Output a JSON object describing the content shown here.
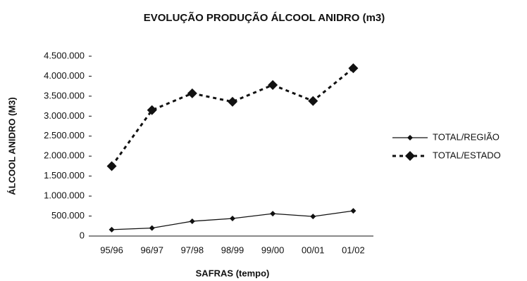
{
  "chart_data": {
    "type": "line",
    "title": "EVOLUÇÃO PRODUÇÃO ÁLCOOL ANIDRO (m3)",
    "x_label": "SAFRAS (tempo)",
    "y_label": "ÁLCOOL ANIDRO (M3)",
    "categories": [
      "95/96",
      "96/97",
      "97/98",
      "98/99",
      "99/00",
      "00/01",
      "01/02"
    ],
    "series": [
      {
        "name": "TOTAL/REGIÃO",
        "color": "#111111",
        "dashed": false,
        "values": [
          160000,
          200000,
          370000,
          440000,
          560000,
          490000,
          630000
        ]
      },
      {
        "name": "TOTAL/ESTADO",
        "color": "#111111",
        "dashed": true,
        "values": [
          1750000,
          3150000,
          3570000,
          3360000,
          3780000,
          3380000,
          4200000
        ]
      }
    ],
    "ylim": [
      0,
      4500000
    ],
    "yticks": [
      0,
      {
        "value": 500000,
        "label": "500.000"
      },
      {
        "value": 1000000,
        "label": "1.000.000"
      },
      {
        "value": 1500000,
        "label": "1.500.000"
      },
      {
        "value": 2000000,
        "label": "2.000.000"
      },
      {
        "value": 2500000,
        "label": "2.500.000"
      },
      {
        "value": 3000000,
        "label": "3.000.000"
      },
      {
        "value": 3500000,
        "label": "3.500.000"
      },
      {
        "value": 4000000,
        "label": "4.000.000"
      },
      {
        "value": 4500000,
        "label": "4.500.000"
      }
    ],
    "grid": false,
    "legend": "right"
  }
}
